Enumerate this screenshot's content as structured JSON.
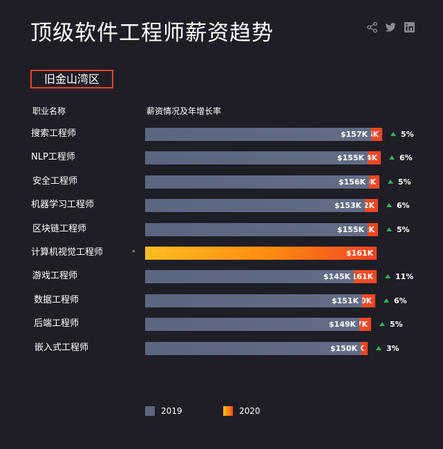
{
  "page": {
    "title": "顶级软件工程师薪资趋势",
    "region": "旧金山湾区",
    "header_role": "职业名称",
    "header_salary": "薪资情况及年增长率",
    "note_mark": "*"
  },
  "social": [
    "share-icon",
    "twitter-icon",
    "linkedin-icon"
  ],
  "colors": {
    "bar2019": "#5b6680",
    "bar2020_start": "#fdbd1e",
    "bar2020_end": "#f24425",
    "growth": "#2fb35b",
    "accent": "#e2452b"
  },
  "chart_data": {
    "type": "bar",
    "orientation": "horizontal",
    "categories": [
      "搜索工程师",
      "NLP工程师",
      "安全工程师",
      "机器学习工程师",
      "区块链工程师",
      "计算机视觉工程师",
      "游戏工程师",
      "数据工程师",
      "后端工程师",
      "嵌入式工程师"
    ],
    "series": [
      {
        "name": "2019",
        "values": [
          157,
          155,
          156,
          153,
          155,
          null,
          145,
          151,
          149,
          150
        ],
        "labels": [
          "$157K",
          "$155K",
          "$156K",
          "$153K",
          "$155K",
          "",
          "$145K",
          "$151K",
          "$149K",
          "$150K"
        ]
      },
      {
        "name": "2020",
        "values": [
          165,
          164,
          163,
          162,
          162,
          161,
          161,
          160,
          157,
          155
        ],
        "labels": [
          "$165K",
          "$164K",
          "$163K",
          "$162K",
          "$162K",
          "$161K",
          "$161K",
          "$160K",
          "$157K",
          "$155K"
        ]
      }
    ],
    "growth": [
      "5%",
      "6%",
      "5%",
      "6%",
      "5%",
      "",
      "11%",
      "6%",
      "5%",
      "3%"
    ],
    "legend": [
      "2019",
      "2020"
    ],
    "legend_position": "bottom-left"
  }
}
